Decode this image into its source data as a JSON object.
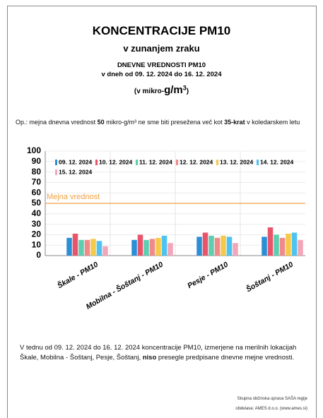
{
  "header": {
    "title": "KONCENTRACIJE PM10",
    "subtitle": "v zunanjem zraku",
    "heading": "DNEVNE VREDNOSTI PM10",
    "range": "v dneh od 09. 12. 2024 do 16. 12. 2024",
    "unit": [
      "(v mikro-",
      "g/m",
      "3",
      ")"
    ]
  },
  "note": [
    "Op.: mejna dnevna vrednost ",
    "50",
    " mikro-g/m³ ne sme biti presežena več kot ",
    "35-krat",
    " v koledarskem letu"
  ],
  "chart_data": {
    "type": "bar",
    "categories": [
      "Škale - PM10",
      "Mobilna - Šoštanj - PM10",
      "Pesje - PM10",
      "Šoštanj - PM10"
    ],
    "series": [
      {
        "name": "09. 12. 2024",
        "color": "#2b8fd6",
        "values": [
          17,
          15,
          18,
          18
        ]
      },
      {
        "name": "10. 12. 2024",
        "color": "#e8556b",
        "values": [
          21,
          20,
          22,
          27
        ]
      },
      {
        "name": "11. 12. 2024",
        "color": "#5fcdb0",
        "values": [
          15,
          15,
          19,
          20
        ]
      },
      {
        "name": "12. 12. 2024",
        "color": "#f08a8a",
        "values": [
          15,
          16,
          17,
          17
        ]
      },
      {
        "name": "13. 12. 2024",
        "color": "#f5c94a",
        "values": [
          16,
          17,
          19,
          21
        ]
      },
      {
        "name": "14. 12. 2024",
        "color": "#4cc3f0",
        "values": [
          14,
          19,
          18,
          22
        ]
      },
      {
        "name": "15. 12. 2024",
        "color": "#f4a6b9",
        "values": [
          9,
          12,
          12,
          15
        ]
      }
    ],
    "threshold": {
      "value": 50,
      "label": "Mejna vrednost",
      "color": "#f0a040"
    },
    "ylim": [
      0,
      100
    ],
    "yticks": [
      0,
      10,
      20,
      30,
      40,
      50,
      60,
      70,
      80,
      90,
      100
    ],
    "grid": true
  },
  "conclusion": [
    "V tednu od 09. 12. 2024 do 16. 12. 2024 koncentracije PM10, izmerjene na merilnih lokacijah Škale, Mobilna - Šoštanj, Pesje, Šoštanj, ",
    "niso",
    " presegle predpisane dnevne mejne vrednosti."
  ],
  "footer": [
    "Skupna občinska uprava SAŠA regije",
    "obdelava: AMES d.o.o. (www.ames.si)"
  ]
}
